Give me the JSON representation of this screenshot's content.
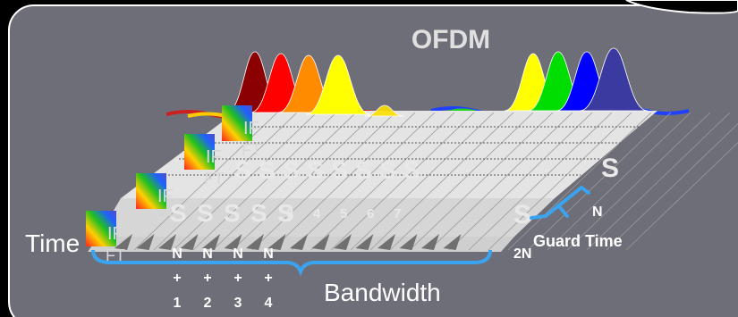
{
  "title": "OFDM",
  "time_label": "Time",
  "bandwidth_label": "Bandwidth",
  "guard_time_label": "Guard Time",
  "ifft_labels": [
    "IF",
    "FT",
    "IF",
    "FT",
    "IF",
    "FT",
    "IF",
    "FT"
  ],
  "symbol_row_top": [
    "S",
    "S",
    "S",
    "S",
    "S",
    "S",
    "S",
    "S",
    "S",
    "S",
    "S",
    "S",
    "S"
  ],
  "symbol_row_front": [
    "S",
    "S",
    "S",
    "S",
    "S",
    "S"
  ],
  "symbol_index_labels": [
    "3",
    "4",
    "5",
    "6",
    "7"
  ],
  "right_labels": {
    "s_top": "S",
    "s_front": "S",
    "n": "N",
    "two_n": "2N"
  },
  "n_plus_columns": [
    {
      "n": "N",
      "plus": "+",
      "index": "1"
    },
    {
      "n": "N",
      "plus": "+",
      "index": "2"
    },
    {
      "n": "N",
      "plus": "+",
      "index": "3"
    },
    {
      "n": "N",
      "plus": "+",
      "index": "4"
    }
  ],
  "colors": {
    "panel": "#6e6e78",
    "panel_border": "#ffffff",
    "bracket": "#3aa4f0",
    "subcarriers": [
      "#8b0000",
      "#ff0000",
      "#ff8c00",
      "#ffff00",
      "#00dd00",
      "#0000ff",
      "#3a3aa0"
    ]
  }
}
